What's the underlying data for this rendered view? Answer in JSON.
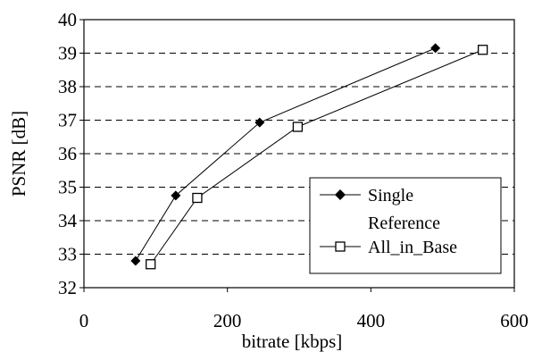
{
  "chart_data": {
    "type": "line",
    "xlabel": "bitrate [kbps]",
    "ylabel": "PSNR [dB]",
    "xlim": [
      0,
      600
    ],
    "ylim": [
      32,
      40
    ],
    "xticks": [
      0,
      200,
      400,
      600
    ],
    "yticks": [
      32,
      33,
      34,
      35,
      36,
      37,
      38,
      39,
      40
    ],
    "grid": "horizontal dashed",
    "legend_position": "bottom-right",
    "series": [
      {
        "name": "Single Reference",
        "legend_lines": [
          "Single",
          "Reference"
        ],
        "marker": "filled-diamond",
        "color": "#000000",
        "x": [
          72,
          128,
          245,
          490
        ],
        "y": [
          32.8,
          34.75,
          36.93,
          39.15
        ]
      },
      {
        "name": "All_in_Base",
        "legend_lines": [
          "All_in_Base"
        ],
        "marker": "open-square",
        "color": "#000000",
        "x": [
          93,
          158,
          298,
          556
        ],
        "y": [
          32.7,
          34.68,
          36.8,
          39.1
        ]
      }
    ]
  }
}
